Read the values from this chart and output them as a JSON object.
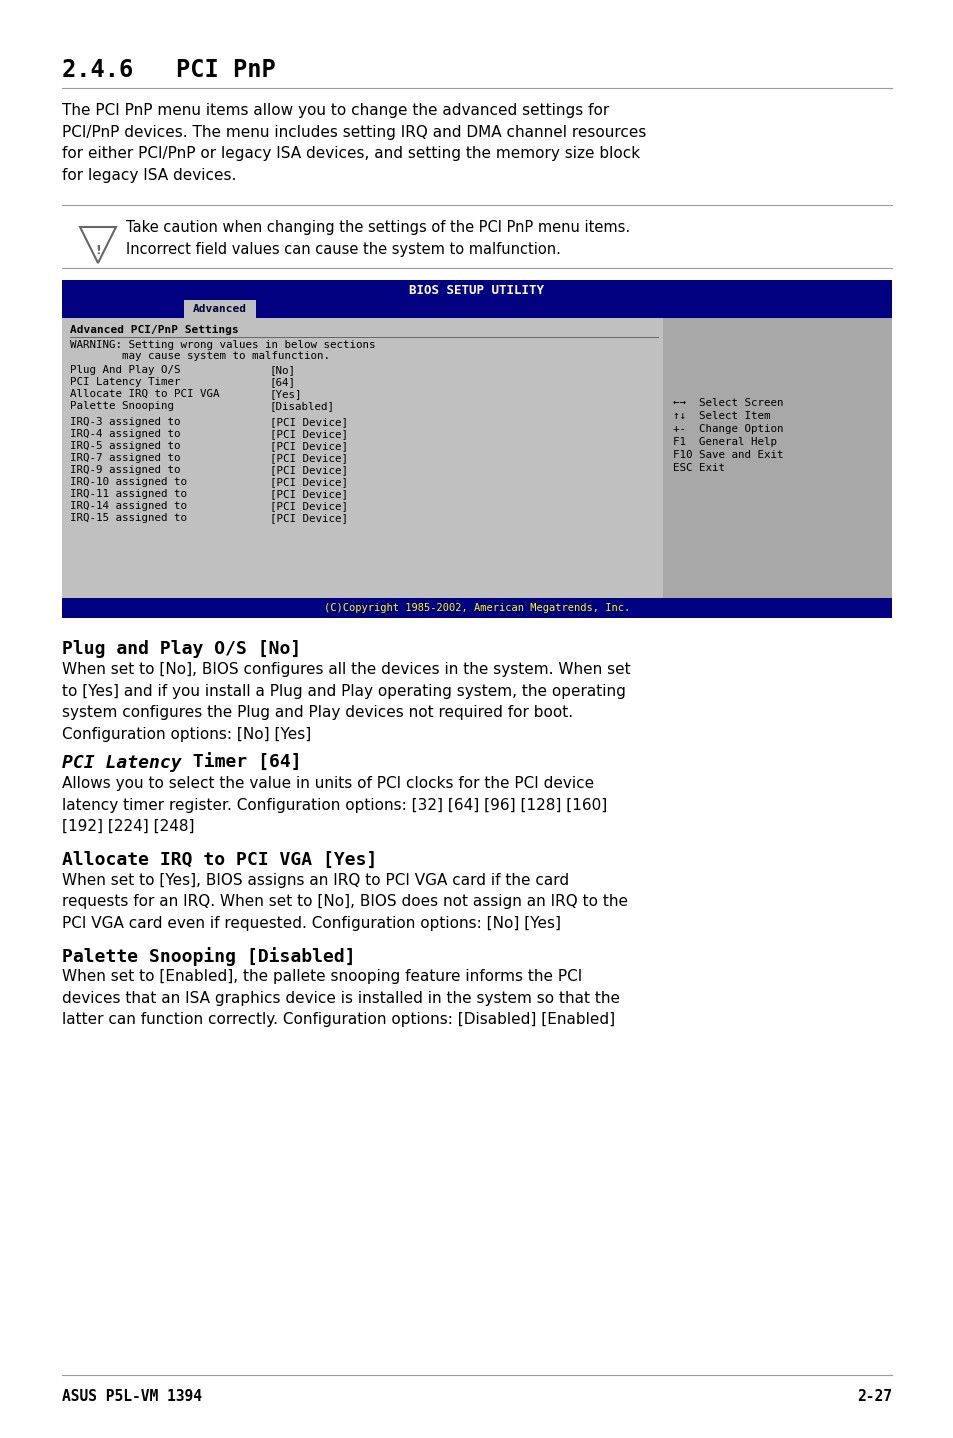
{
  "page_bg": "#ffffff",
  "section_title": "2.4.6   PCI PnP",
  "intro_text": "The PCI PnP menu items allow you to change the advanced settings for\nPCI/PnP devices. The menu includes setting IRQ and DMA channel resources\nfor either PCI/PnP or legacy ISA devices, and setting the memory size block\nfor legacy ISA devices.",
  "caution_text": "Take caution when changing the settings of the PCI PnP menu items.\nIncorrect field values can cause the system to malfunction.",
  "bios_title": "BIOS SETUP UTILITY",
  "bios_tab": "Advanced",
  "bios_left_header": "Advanced PCI/PnP Settings",
  "bios_warning1": "WARNING: Setting wrong values in below sections",
  "bios_warning2": "        may cause system to malfunction.",
  "bios_settings": [
    [
      "Plug And Play O/S          ",
      "[No]"
    ],
    [
      "PCI Latency Timer          ",
      "[64]"
    ],
    [
      "Allocate IRQ to PCI VGA   ",
      "[Yes]"
    ],
    [
      "Palette Snooping           ",
      "[Disabled]"
    ]
  ],
  "bios_irq": [
    [
      "IRQ-3 assigned to          ",
      "[PCI Device]"
    ],
    [
      "IRQ-4 assigned to          ",
      "[PCI Device]"
    ],
    [
      "IRQ-5 assigned to          ",
      "[PCI Device]"
    ],
    [
      "IRQ-7 assigned to          ",
      "[PCI Device]"
    ],
    [
      "IRQ-9 assigned to          ",
      "[PCI Device]"
    ],
    [
      "IRQ-10 assigned to         ",
      "[PCI Device]"
    ],
    [
      "IRQ-11 assigned to         ",
      "[PCI Device]"
    ],
    [
      "IRQ-14 assigned to         ",
      "[PCI Device]"
    ],
    [
      "IRQ-15 assigned to         ",
      "[PCI Device]"
    ]
  ],
  "bios_right_lines": [
    "←→  Select Screen",
    "↑↓  Select Item",
    "+-  Change Option",
    "F1  General Help",
    "F10 Save and Exit",
    "ESC Exit"
  ],
  "bios_footer": "(C)Copyright 1985-2002, American Megatrends, Inc.",
  "sections": [
    {
      "heading": "Plug and Play O/S [No]",
      "heading_parts": [
        [
          "Plug and Play O/S [No]",
          "bold",
          "normal"
        ]
      ],
      "body": "When set to [No], BIOS configures all the devices in the system. When set\nto [Yes] and if you install a Plug and Play operating system, the operating\nsystem configures the Plug and Play devices not required for boot.\nConfiguration options: [No] [Yes]"
    },
    {
      "heading": "PCI Latency Timer [64]",
      "heading_parts": [
        [
          "PCI Latency",
          "bold",
          "italic"
        ],
        [
          " Timer [64]",
          "bold",
          "normal"
        ]
      ],
      "body": "Allows you to select the value in units of PCI clocks for the PCI device\nlatency timer register. Configuration options: [32] [64] [96] [128] [160]\n[192] [224] [248]"
    },
    {
      "heading": "Allocate IRQ to PCI VGA [Yes]",
      "heading_parts": [
        [
          "Allocate IRQ to PCI VGA [Yes]",
          "bold",
          "normal"
        ]
      ],
      "body": "When set to [Yes], BIOS assigns an IRQ to PCI VGA card if the card\nrequests for an IRQ. When set to [No], BIOS does not assign an IRQ to the\nPCI VGA card even if requested. Configuration options: [No] [Yes]"
    },
    {
      "heading": "Palette Snooping [Disabled]",
      "heading_parts": [
        [
          "Palette Snooping [Disabled]",
          "bold",
          "normal"
        ]
      ],
      "body": "When set to [Enabled], the pallete snooping feature informs the PCI\ndevices that an ISA graphics device is installed in the system so that the\nlatter can function correctly. Configuration options: [Disabled] [Enabled]"
    }
  ],
  "footer_left": "ASUS P5L-VM 1394",
  "footer_right": "2-27",
  "bios_bg": "#000080",
  "bios_content_bg": "#c0c0c0",
  "bios_right_bg": "#a8a8a8"
}
